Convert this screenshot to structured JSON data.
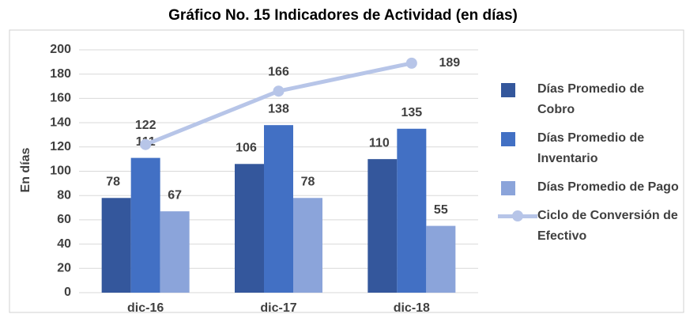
{
  "chart_data": {
    "type": "bar-line",
    "title": "Gráfico No. 15 Indicadores de Actividad (en días)",
    "y_label": "En días",
    "categories": [
      "dic-16",
      "dic-17",
      "dic-18"
    ],
    "series": [
      {
        "name": "Días Promedio de Cobro",
        "type": "bar",
        "color": "#34579c",
        "values": [
          78,
          106,
          110
        ]
      },
      {
        "name": "Días Promedio de Inventario",
        "type": "bar",
        "color": "#4270c4",
        "values": [
          111,
          138,
          135
        ]
      },
      {
        "name": "Días Promedio de Pago",
        "type": "bar",
        "color": "#8ba4da",
        "values": [
          67,
          78,
          55
        ]
      },
      {
        "name": "Ciclo de Conversión de Efectivo",
        "type": "line",
        "color": "#b7c5e8",
        "values": [
          122,
          166,
          189
        ]
      }
    ],
    "ylim": [
      0,
      200
    ],
    "yticks": [
      0,
      20,
      40,
      60,
      80,
      100,
      120,
      140,
      160,
      180,
      200
    ],
    "grid": true,
    "legend": "right"
  }
}
